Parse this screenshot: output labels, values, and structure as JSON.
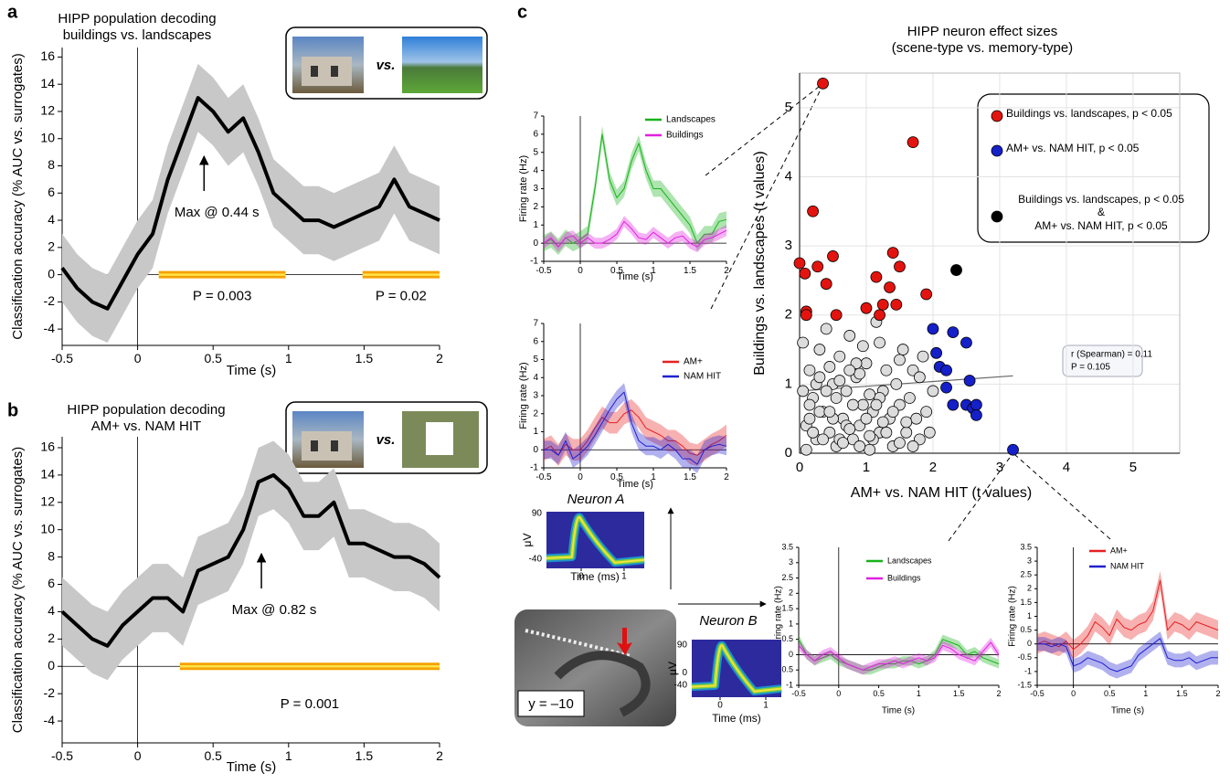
{
  "panel_labels": [
    "a",
    "b",
    "c"
  ],
  "photo_insets": [
    "vs.",
    "vs."
  ],
  "mri_label": "y = –10",
  "chart_data": [
    {
      "type": "line",
      "title": "HIPP population decoding\nbuildings vs. landscapes",
      "xlabel": "Time (s)",
      "ylabel": "Classification accuracy (% AUC vs. surrogates)",
      "xlim": [
        -0.5,
        2
      ],
      "ylim": [
        -5.2,
        16.7
      ],
      "xticks": [
        -0.5,
        0,
        0.5,
        1,
        1.5,
        2
      ],
      "yticks": [
        -4,
        -2,
        0,
        2,
        4,
        6,
        8,
        10,
        12,
        14,
        16
      ],
      "x": [
        -0.5,
        -0.4,
        -0.3,
        -0.2,
        -0.1,
        0,
        0.1,
        0.2,
        0.3,
        0.4,
        0.5,
        0.6,
        0.7,
        0.8,
        0.9,
        1.0,
        1.1,
        1.2,
        1.3,
        1.4,
        1.5,
        1.6,
        1.7,
        1.8,
        1.9,
        2.0
      ],
      "band_color": "#c8c8c8",
      "sig_color": "#f5a100",
      "series": [
        {
          "color": "#000000",
          "error": 2.5,
          "values": [
            0.5,
            -1.0,
            -2.0,
            -2.5,
            -0.5,
            1.5,
            3,
            7,
            10,
            13,
            12,
            10.5,
            11.5,
            9,
            6,
            5,
            4,
            4,
            3.5,
            4,
            4.5,
            5,
            7,
            5,
            4.5,
            4
          ]
        }
      ],
      "sig": [
        {
          "range": [
            0.14,
            0.98
          ],
          "label": "P = 0.003"
        },
        {
          "range": [
            1.49,
            2.0
          ],
          "label": "P = 0.02"
        }
      ],
      "max": {
        "x": 0.44,
        "label": "Max @ 0.44 s"
      }
    },
    {
      "type": "line",
      "title": "HIPP population decoding\nAM+ vs. NAM HIT",
      "xlabel": "Time (s)",
      "ylabel": "Classification accuracy (% AUC vs. surrogates)",
      "xlim": [
        -0.5,
        2
      ],
      "ylim": [
        -5.6,
        16.8
      ],
      "xticks": [
        -0.5,
        0,
        0.5,
        1,
        1.5,
        2
      ],
      "yticks": [
        -4,
        -2,
        0,
        2,
        4,
        6,
        8,
        10,
        12,
        14,
        16
      ],
      "x": [
        -0.5,
        -0.4,
        -0.3,
        -0.2,
        -0.1,
        0,
        0.1,
        0.2,
        0.3,
        0.4,
        0.5,
        0.6,
        0.7,
        0.8,
        0.9,
        1.0,
        1.1,
        1.2,
        1.3,
        1.4,
        1.5,
        1.6,
        1.7,
        1.8,
        1.9,
        2.0
      ],
      "band_color": "#c8c8c8",
      "sig_color": "#f5a100",
      "series": [
        {
          "color": "#000000",
          "error": 2.5,
          "values": [
            4,
            3,
            2,
            1.5,
            3,
            4,
            5,
            5,
            4,
            7,
            7.5,
            8,
            10,
            13.5,
            14,
            13,
            11,
            11,
            12,
            9,
            9,
            8.5,
            8,
            8,
            7.5,
            6.5
          ]
        }
      ],
      "sig": [
        {
          "range": [
            0.28,
            2.0
          ],
          "label": "P = 0.001"
        }
      ],
      "max": {
        "x": 0.82,
        "label": "Max @ 0.82 s"
      }
    },
    {
      "type": "scatter",
      "title": "HIPP neuron effect sizes\n(scene-type vs. memory-type)",
      "xlabel": "AM+ vs. NAM HIT  (t values)",
      "ylabel": "Buildings vs. landscapes (t values)",
      "xlim": [
        0,
        5.7
      ],
      "ylim": [
        0,
        5.5
      ],
      "xticks": [
        0,
        1,
        2,
        3,
        4,
        5
      ],
      "yticks": [
        0,
        1,
        2,
        3,
        4,
        5
      ],
      "grid": true,
      "stats": [
        "r (Spearman) = 0.11",
        "P = 0.105"
      ],
      "trend": {
        "x": [
          0,
          3.2
        ],
        "y": [
          0.9,
          1.12
        ]
      },
      "series": [
        {
          "color": "#dcdcdc",
          "x": [
            0.05,
            0.1,
            0.15,
            0.2,
            0.25,
            0.3,
            0.35,
            0.4,
            0.45,
            0.5,
            0.55,
            0.6,
            0.65,
            0.7,
            0.75,
            0.8,
            0.85,
            0.9,
            0.95,
            1.0,
            1.05,
            1.1,
            1.15,
            1.2,
            1.25,
            1.3,
            1.35,
            1.4,
            1.45,
            1.5,
            1.55,
            1.6,
            1.65,
            1.7,
            1.75,
            1.8,
            1.85,
            1.9,
            1.95,
            2.0,
            0.1,
            0.2,
            0.3,
            0.4,
            0.5,
            0.6,
            0.7,
            0.8,
            0.9,
            1.0,
            1.1,
            1.2,
            1.3,
            1.4,
            1.5,
            1.6,
            1.7,
            0.05,
            0.15,
            0.25,
            0.35,
            0.45,
            0.55,
            0.65,
            0.75,
            0.85,
            0.95,
            1.05,
            1.15,
            1.25,
            0.3,
            0.6,
            0.9,
            1.2,
            1.5,
            1.8,
            0.15,
            0.45,
            0.75,
            1.05
          ],
          "y": [
            1.6,
            0.4,
            1.2,
            0.8,
            0.2,
            1.5,
            0.6,
            1.8,
            0.3,
            1.0,
            0.1,
            1.4,
            0.5,
            0.9,
            1.7,
            0.2,
            1.1,
            0.4,
            0.7,
            1.3,
            0.05,
            0.6,
            1.9,
            0.3,
            0.9,
            1.2,
            0.5,
            0.1,
            1.0,
            0.7,
            1.5,
            0.3,
            0.8,
            1.2,
            0.5,
            0.2,
            1.4,
            0.6,
            0.3,
            0.9,
            0.05,
            0.3,
            0.6,
            0.9,
            0.5,
            0.2,
            0.4,
            0.7,
            0.1,
            0.5,
            0.2,
            0.8,
            0.3,
            0.6,
            0.15,
            0.45,
            0.1,
            0.9,
            0.5,
            1.0,
            0.2,
            0.6,
            0.8,
            0.15,
            0.35,
            1.3,
            1.55,
            0.25,
            0.7,
            0.45,
            1.1,
            1.05,
            1.15,
            1.6,
            1.35,
            1.1,
            0.7,
            1.25,
            1.2,
            0.85
          ]
        },
        {
          "name": "Buildings vs. landscapes, p < 0.05",
          "color": "#e3140f",
          "x": [
            0,
            0.08,
            0.1,
            0.1,
            0.2,
            0.27,
            0.35,
            0.4,
            0.5,
            0.55,
            1.0,
            1.15,
            1.2,
            1.25,
            1.35,
            1.4,
            1.45,
            1.5,
            1.7,
            1.9
          ],
          "y": [
            2.75,
            2.6,
            2.05,
            2.0,
            3.5,
            2.7,
            5.35,
            2.45,
            2.85,
            2.0,
            2.1,
            2.55,
            2.0,
            2.15,
            2.4,
            2.9,
            2.15,
            2.7,
            4.5,
            2.3
          ]
        },
        {
          "name": "AM+ vs. NAM HIT, p < 0.05",
          "color": "#1520c8",
          "x": [
            2.0,
            2.05,
            2.1,
            2.2,
            2.3,
            2.2,
            2.3,
            2.5,
            2.55,
            2.5,
            2.6,
            2.65,
            2.65,
            3.2
          ],
          "y": [
            1.8,
            1.45,
            1.25,
            1.2,
            1.75,
            0.95,
            0.7,
            1.6,
            1.05,
            0.7,
            0.65,
            0.7,
            0.55,
            0.05
          ]
        },
        {
          "name": "Buildings vs. landscapes, p < 0.05\n&\nAM+ vs. NAM HIT, p < 0.05",
          "color": "#000000",
          "x": [
            2.35
          ],
          "y": [
            2.65
          ]
        }
      ]
    },
    {
      "type": "line",
      "xlabel": "Time (s)",
      "ylabel": "Firing rate (Hz)",
      "xlim": [
        -0.5,
        2
      ],
      "ylim": [
        -1,
        7
      ],
      "xticks": [
        -0.5,
        0,
        0.5,
        1,
        1.5,
        2
      ],
      "yticks": [
        -1,
        0,
        1,
        2,
        3,
        4,
        5,
        6,
        7
      ],
      "x": [
        -0.5,
        -0.4,
        -0.3,
        -0.2,
        -0.1,
        0,
        0.1,
        0.2,
        0.3,
        0.4,
        0.5,
        0.6,
        0.7,
        0.8,
        0.9,
        1.0,
        1.1,
        1.2,
        1.3,
        1.4,
        1.5,
        1.6,
        1.7,
        1.8,
        1.9,
        2.0
      ],
      "series": [
        {
          "name": "Landscapes",
          "color": "#17b31a",
          "error": 0.45,
          "values": [
            0,
            0.2,
            -0.2,
            0.3,
            0,
            0.2,
            0.5,
            3,
            6,
            3.5,
            2.5,
            3,
            4.5,
            5.5,
            4,
            3,
            3,
            2.5,
            2,
            1.5,
            1,
            0,
            0.5,
            0.5,
            1.2,
            1.3
          ]
        },
        {
          "name": "Buildings",
          "color": "#e020e0",
          "error": 0.3,
          "values": [
            0,
            0.3,
            -0.2,
            0.3,
            0.4,
            0,
            0.3,
            0,
            0,
            0.2,
            0.5,
            1.2,
            0.8,
            0.3,
            0.2,
            0.6,
            0.3,
            0,
            0.3,
            0.4,
            0,
            -0.2,
            0.2,
            0.3,
            0.5,
            0.7
          ]
        }
      ]
    },
    {
      "type": "line",
      "xlabel": "Time (s)",
      "ylabel": "Firing rate (Hz)",
      "xlim": [
        -0.5,
        2
      ],
      "ylim": [
        -1,
        7
      ],
      "xticks": [
        -0.5,
        0,
        0.5,
        1,
        1.5,
        2
      ],
      "yticks": [
        -1,
        0,
        1,
        2,
        3,
        4,
        5,
        6,
        7
      ],
      "x": [
        -0.5,
        -0.4,
        -0.3,
        -0.2,
        -0.1,
        0,
        0.1,
        0.2,
        0.3,
        0.4,
        0.5,
        0.6,
        0.7,
        0.8,
        0.9,
        1.0,
        1.1,
        1.2,
        1.3,
        1.4,
        1.5,
        1.6,
        1.7,
        1.8,
        1.9,
        2.0
      ],
      "series": [
        {
          "name": "AM+",
          "color": "#e82020",
          "error": 0.6,
          "values": [
            0,
            0.2,
            -0.3,
            0.3,
            0,
            0,
            0.5,
            1.2,
            1.8,
            1.5,
            1.5,
            2,
            2.2,
            1.8,
            1.2,
            1,
            0.8,
            0.5,
            0.5,
            0.2,
            -0.2,
            -0.3,
            0,
            0.3,
            0.5,
            0.8
          ]
        },
        {
          "name": "NAM HIT",
          "color": "#2020d0",
          "error": 0.5,
          "values": [
            0,
            0,
            -0.3,
            0.5,
            -0.5,
            -0.2,
            0.2,
            0.8,
            1.5,
            2.2,
            2.8,
            3.2,
            1.5,
            0.5,
            0.2,
            0.2,
            0,
            0.3,
            0,
            -0.5,
            -0.5,
            -0.8,
            0,
            0.2,
            0.3,
            0.2
          ]
        }
      ]
    },
    {
      "type": "line",
      "xlabel": "Time (s)",
      "ylabel": "Firing rate (Hz)",
      "xlim": [
        -0.5,
        2
      ],
      "ylim": [
        -1,
        3.5
      ],
      "xticks": [
        -0.5,
        0,
        0.5,
        1,
        1.5,
        2
      ],
      "yticks": [
        -1,
        -0.5,
        0,
        0.5,
        1,
        1.5,
        2,
        2.5,
        3,
        3.5
      ],
      "x": [
        -0.5,
        -0.4,
        -0.3,
        -0.2,
        -0.1,
        0,
        0.1,
        0.2,
        0.3,
        0.4,
        0.5,
        0.6,
        0.7,
        0.8,
        0.9,
        1.0,
        1.1,
        1.2,
        1.3,
        1.4,
        1.5,
        1.6,
        1.7,
        1.8,
        1.9,
        2.0
      ],
      "series": [
        {
          "name": "Landscapes",
          "color": "#17b31a",
          "error": 0.15,
          "values": [
            0.5,
            0,
            -0.2,
            -0.1,
            0,
            -0.2,
            -0.3,
            -0.4,
            -0.5,
            -0.5,
            -0.4,
            -0.3,
            -0.3,
            -0.2,
            -0.2,
            -0.3,
            -0.2,
            0,
            0.5,
            0.4,
            0.3,
            0,
            0.1,
            -0.1,
            -0.2,
            -0.3
          ]
        },
        {
          "name": "Buildings",
          "color": "#e020e0",
          "error": 0.15,
          "values": [
            0.3,
            0,
            -0.2,
            0,
            0.1,
            -0.1,
            -0.3,
            -0.4,
            -0.5,
            -0.4,
            -0.3,
            -0.3,
            -0.2,
            -0.3,
            -0.2,
            -0.1,
            -0.2,
            -0.1,
            0.3,
            0.2,
            0,
            -0.1,
            -0.2,
            0.1,
            0.4,
            0
          ]
        }
      ]
    },
    {
      "type": "line",
      "xlabel": "Time (s)",
      "ylabel": "Firing rate (Hz)",
      "xlim": [
        -0.5,
        2
      ],
      "ylim": [
        -1.5,
        3.5
      ],
      "xticks": [
        -0.5,
        0,
        0.5,
        1,
        1.5,
        2
      ],
      "yticks": [
        -1.5,
        -1,
        -0.5,
        0,
        0.5,
        1,
        1.5,
        2,
        2.5,
        3,
        3.5
      ],
      "x": [
        -0.5,
        -0.4,
        -0.3,
        -0.2,
        -0.1,
        0,
        0.1,
        0.2,
        0.3,
        0.4,
        0.5,
        0.6,
        0.7,
        0.8,
        0.9,
        1.0,
        1.1,
        1.2,
        1.3,
        1.4,
        1.5,
        1.6,
        1.7,
        1.8,
        1.9,
        2.0
      ],
      "series": [
        {
          "name": "AM+",
          "color": "#e82020",
          "error": 0.35,
          "values": [
            0,
            0.1,
            0,
            -0.1,
            0.1,
            -0.2,
            0,
            0.3,
            0.8,
            0.6,
            0.3,
            0.9,
            0.6,
            0.5,
            0.7,
            0.8,
            1.2,
            2.3,
            0.5,
            0.8,
            0.7,
            0.5,
            0.8,
            0.7,
            0.6,
            0.5
          ]
        },
        {
          "name": "NAM HIT",
          "color": "#2020d0",
          "error": 0.25,
          "values": [
            0,
            0,
            -0.1,
            0,
            -0.1,
            -0.8,
            -0.7,
            -0.5,
            -0.6,
            -0.7,
            -0.9,
            -1,
            -0.9,
            -0.8,
            -0.4,
            -0.2,
            0,
            0.2,
            -0.5,
            -0.6,
            -0.6,
            -0.5,
            -0.7,
            -0.6,
            -0.5,
            -0.5
          ]
        }
      ]
    },
    {
      "type": "waveform",
      "title": "Neuron A",
      "xlabel": "Time (ms)",
      "ylabel": "μV",
      "xlim": [
        -0.81,
        1.47
      ],
      "ylim": [
        -66,
        95
      ],
      "xticks": [
        0,
        1
      ],
      "yticks": [
        90,
        -40
      ],
      "color": "#2d2a9e"
    },
    {
      "type": "waveform",
      "title": "Neuron B",
      "xlabel": "Time (ms)",
      "ylabel": "μV",
      "xlim": [
        -0.62,
        1.34
      ],
      "ylim": [
        -78,
        107.7
      ],
      "xticks": [
        0,
        1
      ],
      "yticks": [
        90,
        0,
        -40
      ],
      "color": "#2d2a9e"
    }
  ]
}
